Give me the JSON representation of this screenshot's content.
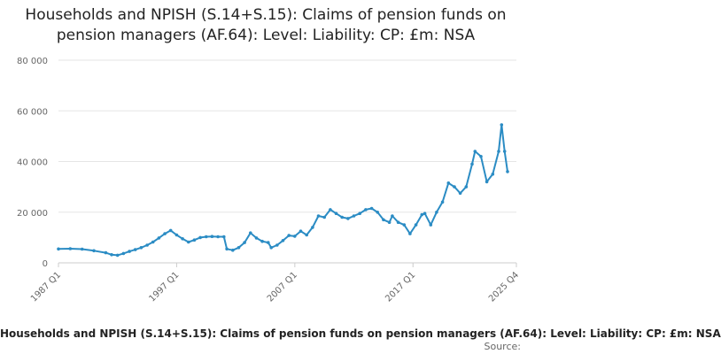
{
  "chart_data": {
    "type": "line",
    "title": "Households and NPISH (S.14+S.15): Claims of pension funds on pension managers (AF.64): Level: Liability: CP: £m: NSA",
    "xlabel": "",
    "ylabel": "",
    "ylim": [
      0,
      80000
    ],
    "yticks": [
      0,
      20000,
      40000,
      60000,
      80000
    ],
    "ytick_labels": [
      "0",
      "20 000",
      "40 000",
      "60 000",
      "80 000"
    ],
    "xticks": [
      "1987 Q1",
      "1997 Q1",
      "2007 Q1",
      "2017 Q1",
      "2025 Q4"
    ],
    "xlim": [
      "1987 Q1",
      "2025 Q4"
    ],
    "grid": "horizontal",
    "legend_position": "bottom",
    "colors": {
      "series": "#2b8cc4",
      "grid": "#e5e5e5",
      "axis": "#cccccc",
      "title": "#222222"
    },
    "series": [
      {
        "name": "Households and NPISH (S.14+S.15): Claims of pension funds on pension managers (AF.64): Level: Liability: CP: £m: NSA",
        "points": [
          [
            "1987 Q1",
            5500
          ],
          [
            "1988 Q1",
            5600
          ],
          [
            "1989 Q1",
            5400
          ],
          [
            "1990 Q1",
            4800
          ],
          [
            "1991 Q1",
            4000
          ],
          [
            "1991 Q3",
            3200
          ],
          [
            "1992 Q1",
            3000
          ],
          [
            "1992 Q3",
            3700
          ],
          [
            "1993 Q1",
            4500
          ],
          [
            "1993 Q3",
            5200
          ],
          [
            "1994 Q1",
            6000
          ],
          [
            "1994 Q3",
            7000
          ],
          [
            "1995 Q1",
            8200
          ],
          [
            "1995 Q3",
            9800
          ],
          [
            "1996 Q1",
            11500
          ],
          [
            "1996 Q3",
            12800
          ],
          [
            "1997 Q1",
            11000
          ],
          [
            "1997 Q3",
            9500
          ],
          [
            "1998 Q1",
            8200
          ],
          [
            "1998 Q3",
            9000
          ],
          [
            "1999 Q1",
            10000
          ],
          [
            "1999 Q3",
            10300
          ],
          [
            "2000 Q1",
            10400
          ],
          [
            "2000 Q3",
            10300
          ],
          [
            "2001 Q1",
            10300
          ],
          [
            "2001 Q2",
            5500
          ],
          [
            "2001 Q4",
            5000
          ],
          [
            "2002 Q2",
            6000
          ],
          [
            "2002 Q4",
            8000
          ],
          [
            "2003 Q2",
            11800
          ],
          [
            "2003 Q4",
            9800
          ],
          [
            "2004 Q2",
            8500
          ],
          [
            "2004 Q4",
            8000
          ],
          [
            "2005 Q1",
            6000
          ],
          [
            "2005 Q3",
            7000
          ],
          [
            "2006 Q1",
            8800
          ],
          [
            "2006 Q3",
            10800
          ],
          [
            "2007 Q1",
            10500
          ],
          [
            "2007 Q3",
            12500
          ],
          [
            "2008 Q1",
            11000
          ],
          [
            "2008 Q3",
            14000
          ],
          [
            "2009 Q1",
            18500
          ],
          [
            "2009 Q3",
            18000
          ],
          [
            "2010 Q1",
            21000
          ],
          [
            "2010 Q3",
            19500
          ],
          [
            "2011 Q1",
            18000
          ],
          [
            "2011 Q3",
            17500
          ],
          [
            "2012 Q1",
            18500
          ],
          [
            "2012 Q3",
            19500
          ],
          [
            "2013 Q1",
            21000
          ],
          [
            "2013 Q3",
            21500
          ],
          [
            "2014 Q1",
            20000
          ],
          [
            "2014 Q3",
            17000
          ],
          [
            "2015 Q1",
            16000
          ],
          [
            "2015 Q2",
            18500
          ],
          [
            "2015 Q4",
            16000
          ],
          [
            "2016 Q2",
            15000
          ],
          [
            "2016 Q4",
            11500
          ],
          [
            "2017 Q2",
            15000
          ],
          [
            "2017 Q4",
            19000
          ],
          [
            "2018 Q1",
            19500
          ],
          [
            "2018 Q3",
            15000
          ],
          [
            "2019 Q1",
            20000
          ],
          [
            "2019 Q3",
            24000
          ],
          [
            "2020 Q1",
            31500
          ],
          [
            "2020 Q3",
            30000
          ],
          [
            "2021 Q1",
            27500
          ],
          [
            "2021 Q3",
            30000
          ],
          [
            "2022 Q1",
            39000
          ],
          [
            "2022 Q2",
            44000
          ],
          [
            "2022 Q4",
            42000
          ],
          [
            "2023 Q2",
            32000
          ],
          [
            "2023 Q4",
            35000
          ],
          [
            "2024 Q2",
            44000
          ],
          [
            "2024 Q3",
            54500
          ],
          [
            "2024 Q4",
            44000
          ],
          [
            "2025 Q1",
            36000
          ]
        ]
      }
    ]
  },
  "legend": {
    "label": "Households and NPISH (S.14+S.15): Claims of pension funds on pension managers (AF.64): Level: Liability: CP: £m: NSA"
  },
  "source": {
    "label": "Source:"
  }
}
